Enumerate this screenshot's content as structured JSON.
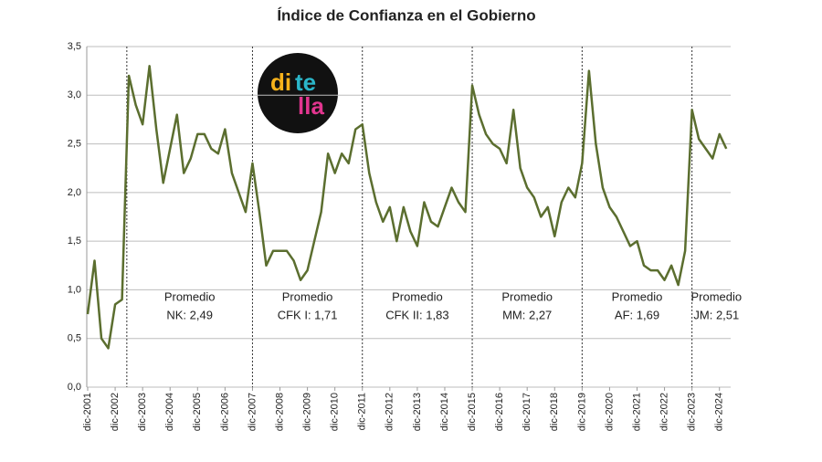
{
  "chart_data": {
    "type": "line",
    "title": "Índice de Confianza en el Gobierno",
    "logo": [
      "di",
      "te",
      "lla"
    ],
    "categories": [
      "dic-2001",
      null,
      null,
      null,
      "dic-2002",
      null,
      null,
      null,
      "dic-2003",
      null,
      null,
      null,
      "dic-2004",
      null,
      null,
      null,
      "dic-2005",
      null,
      null,
      null,
      "dic-2006",
      null,
      null,
      null,
      "dic-2007",
      null,
      null,
      null,
      "dic-2008",
      null,
      null,
      null,
      "dic-2009",
      null,
      null,
      null,
      "dic-2010",
      null,
      null,
      null,
      "dic-2011",
      null,
      null,
      null,
      "dic-2012",
      null,
      null,
      null,
      "dic-2013",
      null,
      null,
      null,
      "dic-2014",
      null,
      null,
      null,
      "dic-2015",
      null,
      null,
      null,
      "dic-2016",
      null,
      null,
      null,
      "dic-2017",
      null,
      null,
      null,
      "dic-2018",
      null,
      null,
      null,
      "dic-2019",
      null,
      null,
      null,
      "dic-2020",
      null,
      null,
      null,
      "dic-2021",
      null,
      null,
      null,
      "dic-2022",
      null,
      null,
      null,
      "dic-2023",
      null,
      null,
      null,
      "dic-2024",
      null
    ],
    "series": [
      {
        "name": "Índice de Confianza en el Gobierno",
        "color": "#5b6e2f",
        "values": [
          0.75,
          1.3,
          0.5,
          0.4,
          0.85,
          0.9,
          3.2,
          2.9,
          2.7,
          3.3,
          2.65,
          2.1,
          2.45,
          2.8,
          2.2,
          2.35,
          2.6,
          2.6,
          2.45,
          2.4,
          2.65,
          2.2,
          2.0,
          1.8,
          2.3,
          1.8,
          1.25,
          1.4,
          1.4,
          1.4,
          1.3,
          1.1,
          1.2,
          1.5,
          1.8,
          2.4,
          2.2,
          2.4,
          2.3,
          2.65,
          2.7,
          2.2,
          1.9,
          1.7,
          1.85,
          1.5,
          1.85,
          1.6,
          1.45,
          1.9,
          1.7,
          1.65,
          1.85,
          2.05,
          1.9,
          1.8,
          3.1,
          2.8,
          2.6,
          2.5,
          2.45,
          2.3,
          2.85,
          2.25,
          2.05,
          1.95,
          1.75,
          1.85,
          1.55,
          1.9,
          2.05,
          1.95,
          2.3,
          3.25,
          2.5,
          2.05,
          1.85,
          1.75,
          1.6,
          1.45,
          1.5,
          1.25,
          1.2,
          1.2,
          1.1,
          1.25,
          1.05,
          1.4,
          2.85,
          2.55,
          2.45,
          2.35,
          2.6,
          2.45
        ]
      }
    ],
    "annotations": [
      [
        "Promedio",
        "NK: 2,49"
      ],
      [
        "Promedio",
        "CFK I: 1,71"
      ],
      [
        "Promedio",
        "CFK II: 1,83"
      ],
      [
        "Promedio",
        "MM: 2,27"
      ],
      [
        "Promedio",
        "AF: 1,69"
      ],
      [
        "Promedio",
        "JM: 2,51"
      ]
    ],
    "ylim": [
      0,
      3.5
    ],
    "yticks": [
      {
        "value": 0,
        "label": "0,0"
      },
      {
        "value": 0.5,
        "label": "0,5"
      },
      {
        "value": 1,
        "label": "1,0"
      },
      {
        "value": 1.5,
        "label": "1,5"
      },
      {
        "value": 2,
        "label": "2,0"
      },
      {
        "value": 2.5,
        "label": "2,5"
      },
      {
        "value": 3,
        "label": "3,0"
      },
      {
        "value": 3.5,
        "label": "3,5"
      }
    ],
    "grid": true
  }
}
